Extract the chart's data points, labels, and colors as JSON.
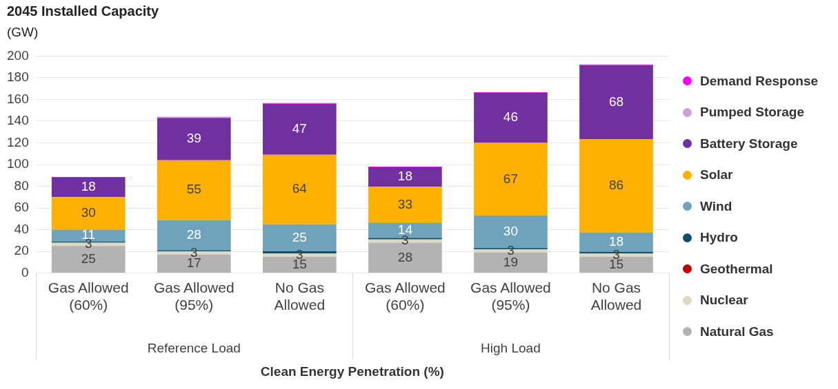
{
  "chart_data": {
    "type": "bar",
    "title": "2045 Installed Capacity",
    "ylabel": "(GW)",
    "xlabel": "Clean Energy Penetration (%)",
    "categories": [
      "Gas Allowed (60%)",
      "Gas Allowed (95%)",
      "No Gas Allowed",
      "Gas Allowed (60%)",
      "Gas Allowed (95%)",
      "No Gas Allowed"
    ],
    "annotations": [
      "Reference Load",
      "High Load"
    ],
    "stacked": true,
    "ylim": [
      0,
      200
    ],
    "yticks": [
      0,
      20,
      40,
      60,
      80,
      100,
      120,
      140,
      160,
      180,
      200
    ],
    "grid": "y",
    "legend": "right",
    "marker": "circle",
    "series": [
      {
        "name": "Natural Gas",
        "color": "#b3b3b3",
        "values": [
          25,
          17,
          15,
          28,
          19,
          15
        ],
        "value_labels": [
          "25",
          "17",
          "15",
          "28",
          "19",
          "15"
        ]
      },
      {
        "name": "Nuclear",
        "color": "#ddd8c4",
        "values": [
          3,
          3,
          3,
          3,
          3,
          3
        ],
        "value_labels": [
          "3",
          "3",
          "3",
          "3",
          "3",
          "3"
        ]
      },
      {
        "name": "Geothermal",
        "color": "#c00000",
        "values": [
          0,
          0,
          0,
          0,
          0,
          0
        ]
      },
      {
        "name": "Hydro",
        "color": "#0b4f6c",
        "values": [
          1,
          1,
          2,
          1.5,
          1,
          1.5
        ]
      },
      {
        "name": "Wind",
        "color": "#6ea3bb",
        "values": [
          11,
          28,
          25,
          14,
          30,
          18
        ],
        "value_labels": [
          "11",
          "28",
          "25",
          "14",
          "30",
          "18"
        ]
      },
      {
        "name": "Solar",
        "color": "#ffb000",
        "values": [
          30,
          55,
          64,
          33,
          67,
          86
        ],
        "value_labels": [
          "30",
          "55",
          "64",
          "33",
          "67",
          "86"
        ]
      },
      {
        "name": "Battery Storage",
        "color": "#7030a0",
        "values": [
          18,
          39,
          47,
          18,
          46,
          68
        ],
        "value_labels": [
          "18",
          "39",
          "47",
          "18",
          "46",
          "68"
        ]
      },
      {
        "name": "Pumped Storage",
        "color": "#c9a0dc",
        "values": [
          0,
          0.4,
          0,
          0,
          0,
          0
        ]
      },
      {
        "name": "Demand Response",
        "color": "#ff00ff",
        "values": [
          0.5,
          0.6,
          0.6,
          0.6,
          0.6,
          0.6
        ]
      }
    ]
  }
}
